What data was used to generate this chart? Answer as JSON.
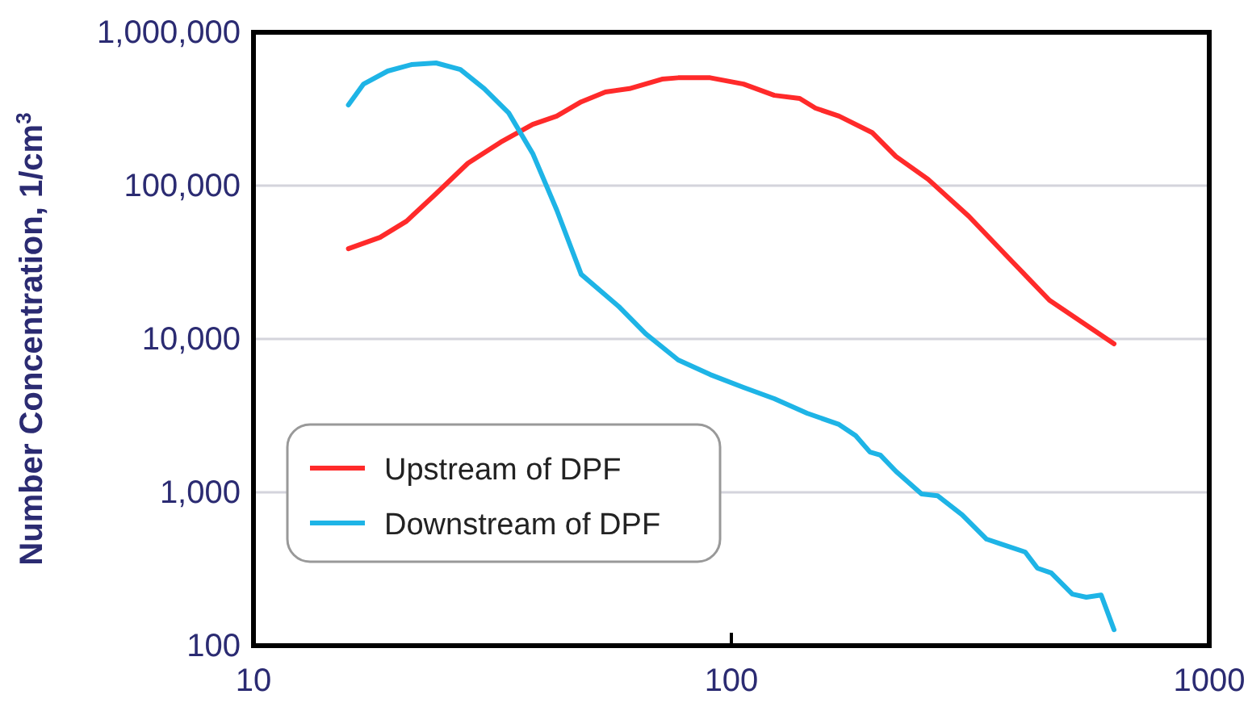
{
  "chart_data": {
    "type": "line",
    "ylabel": "Number Concentration, 1/cm$^{3}$",
    "log": "xy",
    "grid": "y",
    "legend": "bottom left",
    "line_style": "solid",
    "xlim": [
      10,
      1000
    ],
    "xticks": [
      10,
      100,
      1000
    ],
    "ylim": [
      100,
      1000000
    ],
    "yticks": [
      100,
      {
        "value": 1000,
        "label": "1,000"
      },
      {
        "value": 10000,
        "label": "10,000"
      },
      {
        "value": 100000,
        "label": "100,000"
      },
      {
        "value": 1000000,
        "label": "1,000,000"
      }
    ],
    "series": [
      {
        "name": "Upstream of DPF",
        "color": "#ff2a2a",
        "x": [
          15.8,
          18.4,
          20.9,
          24.1,
          28.1,
          32.9,
          38.4,
          43.1,
          48.5,
          54.5,
          61.2,
          71.6,
          77.4,
          90.3,
          106,
          123,
          139,
          150,
          168,
          197,
          221,
          258,
          314,
          381,
          463,
          632
        ],
        "values": [
          38800,
          46000,
          58600,
          88600,
          140000,
          192000,
          251000,
          284000,
          352000,
          408000,
          429000,
          495000,
          505000,
          505000,
          460000,
          388000,
          370000,
          320000,
          284000,
          222000,
          155000,
          110000,
          63100,
          33600,
          17900,
          9300
        ]
      },
      {
        "name": "Downstream of DPF",
        "color": "#1eb4e6",
        "x": [
          15.8,
          17.0,
          19.1,
          21.4,
          24.1,
          27.1,
          30.4,
          34.2,
          38.4,
          43.1,
          48.5,
          58.1,
          66.2,
          77.4,
          90.3,
          106,
          123,
          144,
          168,
          182,
          195,
          205,
          221,
          250,
          270,
          304,
          342,
          367,
          412,
          437,
          467,
          517,
          553,
          594,
          632
        ],
        "values": [
          336000,
          460000,
          559000,
          615000,
          631000,
          572000,
          429000,
          298000,
          162000,
          69500,
          26400,
          16300,
          10800,
          7300,
          5860,
          4830,
          4080,
          3280,
          2770,
          2340,
          1830,
          1750,
          1370,
          975,
          950,
          713,
          495,
          460,
          408,
          320,
          298,
          217,
          207,
          214,
          127
        ]
      }
    ]
  }
}
